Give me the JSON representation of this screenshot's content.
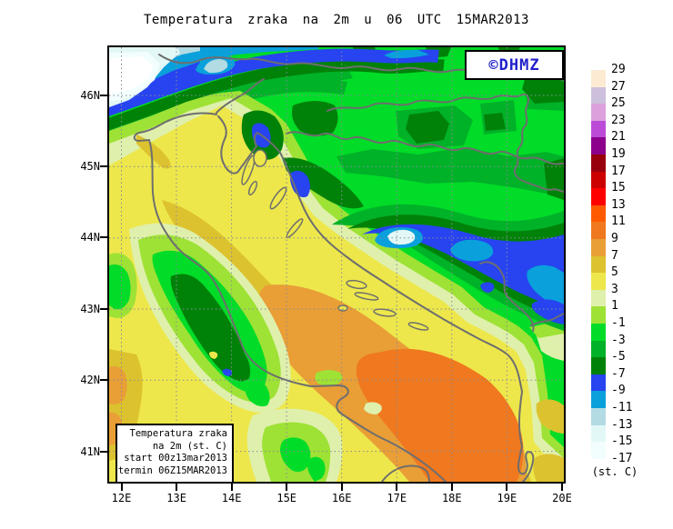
{
  "title": "Temperatura zraka na 2m u 06 UTC 15MAR2013",
  "watermark": "©DHMZ",
  "legend_box": {
    "lines": [
      "Temperatura zraka",
      "na 2m (st. C)",
      "start 00z13mar2013",
      "termin 06Z15MAR2013"
    ]
  },
  "axes": {
    "lat_labels": [
      "46N",
      "45N",
      "44N",
      "43N",
      "42N",
      "41N"
    ],
    "lon_labels": [
      "12E",
      "13E",
      "14E",
      "15E",
      "16E",
      "17E",
      "18E",
      "19E",
      "20E"
    ]
  },
  "colorbar": {
    "unit_label": "(st. C)",
    "tick_labels": [
      "29",
      "27",
      "25",
      "23",
      "21",
      "19",
      "17",
      "15",
      "13",
      "11",
      "9",
      "7",
      "5",
      "3",
      "1",
      "-1",
      "-3",
      "-5",
      "-7",
      "-9",
      "-11",
      "-13",
      "-15",
      "-17"
    ],
    "band_colors": [
      "#FCEBD2",
      "#CCC0DC",
      "#DCA0DC",
      "#BC4CD8",
      "#8C008C",
      "#98000C",
      "#CC0000",
      "#FF0000",
      "#FF5A00",
      "#F0781E",
      "#E99E36",
      "#DDC22F",
      "#EDE74B",
      "#DFF0AC",
      "#9EE235",
      "#00DC28",
      "#00B228",
      "#008208",
      "#2744F0",
      "#09A0DC",
      "#B2DBE4",
      "#E2F8F6",
      "#F2FDFE"
    ]
  },
  "map_colors": {
    "snow_white": "#FFFFFF",
    "coastline": "#6E6E6E",
    "grid": "#8A8A99",
    "frame": "#000000",
    "watermark_blue": "#2121CC"
  }
}
